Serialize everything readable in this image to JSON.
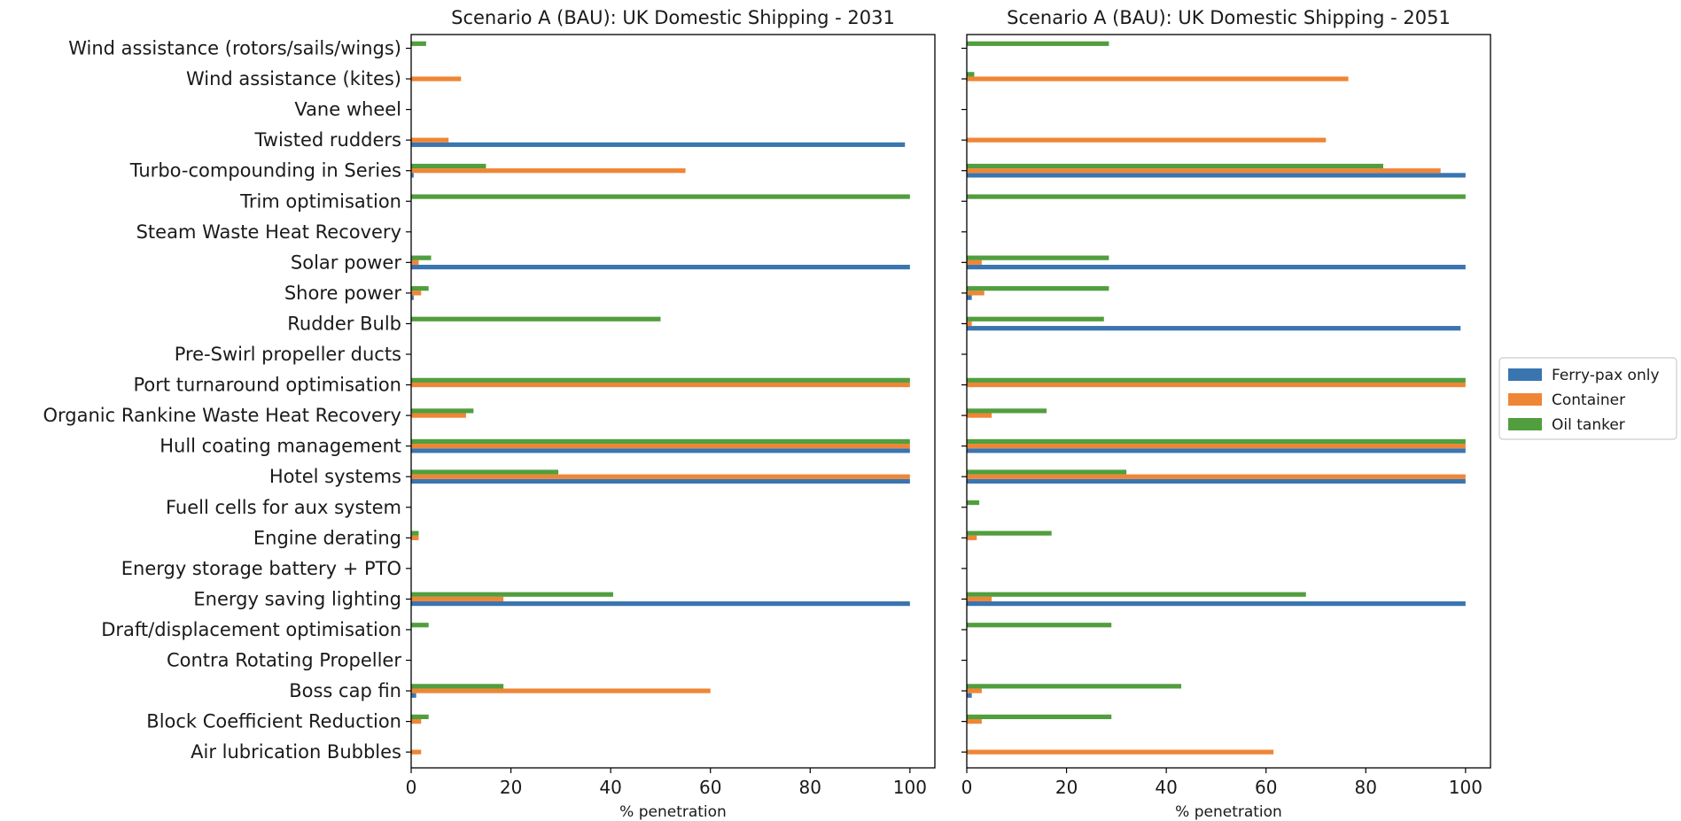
{
  "figure": {
    "legend_title": ""
  },
  "chart_data": [
    {
      "type": "bar",
      "orientation": "horizontal",
      "title": "Scenario A (BAU): UK Domestic Shipping - 2031",
      "xlabel": "% penetration",
      "ylabel": "",
      "xlim": [
        0,
        105
      ],
      "xticks": [
        0,
        20,
        40,
        60,
        80,
        100
      ],
      "grid": false,
      "legend_position": "right",
      "categories": [
        "Wind assistance (rotors/sails/wings)",
        "Wind assistance (kites)",
        "Vane wheel",
        "Twisted rudders",
        "Turbo-compounding in Series",
        "Trim optimisation",
        "Steam Waste Heat Recovery",
        "Solar power",
        "Shore power",
        "Rudder Bulb",
        "Pre-Swirl propeller ducts",
        "Port turnaround optimisation",
        "Organic Rankine Waste Heat Recovery",
        "Hull coating management",
        "Hotel systems",
        "Fuell cells for aux system",
        "Engine derating",
        "Energy storage battery + PTO",
        "Energy saving lighting",
        "Draft/displacement optimisation",
        "Contra Rotating Propeller",
        "Boss cap fin",
        "Block Coefficient Reduction",
        "Air lubrication Bubbles"
      ],
      "series": [
        {
          "name": "Ferry-pax only",
          "color": "#3a75b0",
          "values": [
            0,
            0,
            0,
            99,
            0.5,
            0,
            0,
            100,
            0.5,
            0,
            0,
            0,
            0,
            100,
            100,
            0,
            0,
            0,
            100,
            0,
            0,
            1,
            0,
            0
          ]
        },
        {
          "name": "Container",
          "color": "#ef8636",
          "values": [
            0,
            10,
            0,
            7.5,
            55,
            0,
            0,
            1.5,
            2,
            0,
            0,
            100,
            11,
            100,
            100,
            0,
            1.5,
            0,
            18.5,
            0,
            0,
            60,
            2,
            2
          ]
        },
        {
          "name": "Oil tanker",
          "color": "#519e3e",
          "values": [
            3,
            0,
            0,
            0,
            15,
            100,
            0,
            4,
            3.5,
            50,
            0,
            100,
            12.5,
            100,
            29.5,
            0,
            1.5,
            0,
            40.5,
            3.5,
            0,
            18.5,
            3.5,
            0
          ]
        }
      ]
    },
    {
      "type": "bar",
      "orientation": "horizontal",
      "title": "Scenario A (BAU): UK Domestic Shipping - 2051",
      "xlabel": "% penetration",
      "ylabel": "",
      "xlim": [
        0,
        105
      ],
      "xticks": [
        0,
        20,
        40,
        60,
        80,
        100
      ],
      "grid": false,
      "legend_position": "right",
      "categories": [
        "Wind assistance (rotors/sails/wings)",
        "Wind assistance (kites)",
        "Vane wheel",
        "Twisted rudders",
        "Turbo-compounding in Series",
        "Trim optimisation",
        "Steam Waste Heat Recovery",
        "Solar power",
        "Shore power",
        "Rudder Bulb",
        "Pre-Swirl propeller ducts",
        "Port turnaround optimisation",
        "Organic Rankine Waste Heat Recovery",
        "Hull coating management",
        "Hotel systems",
        "Fuell cells for aux system",
        "Engine derating",
        "Energy storage battery + PTO",
        "Energy saving lighting",
        "Draft/displacement optimisation",
        "Contra Rotating Propeller",
        "Boss cap fin",
        "Block Coefficient Reduction",
        "Air lubrication Bubbles"
      ],
      "series": [
        {
          "name": "Ferry-pax only",
          "color": "#3a75b0",
          "values": [
            0,
            0,
            0,
            0,
            100,
            0,
            0,
            100,
            1,
            99,
            0,
            0,
            0,
            100,
            100,
            0,
            0,
            0,
            100,
            0,
            0,
            1,
            0,
            0
          ]
        },
        {
          "name": "Container",
          "color": "#ef8636",
          "values": [
            0,
            76.5,
            0,
            72,
            95,
            0,
            0,
            3,
            3.5,
            1,
            0,
            100,
            5,
            100,
            100,
            0,
            2,
            0,
            5,
            0,
            0,
            3,
            3,
            61.5
          ]
        },
        {
          "name": "Oil tanker",
          "color": "#519e3e",
          "values": [
            28.5,
            1.5,
            0,
            0,
            83.5,
            100,
            0,
            28.5,
            28.5,
            27.5,
            0,
            100,
            16,
            100,
            32,
            2.5,
            17,
            0,
            68,
            29,
            0,
            43,
            29,
            0
          ]
        }
      ]
    }
  ]
}
